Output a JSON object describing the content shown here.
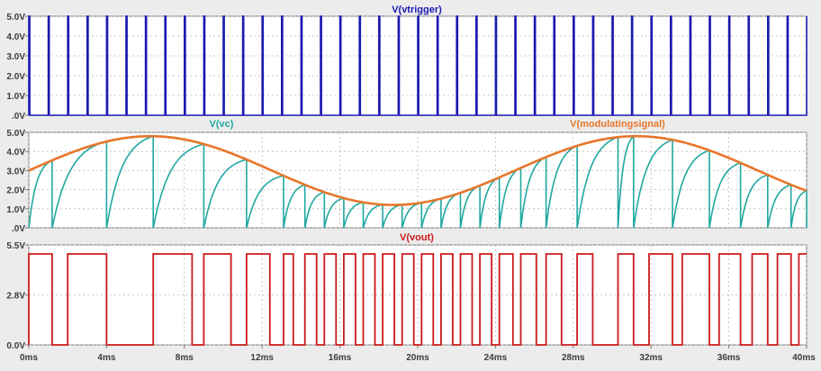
{
  "chart_data": [
    {
      "type": "line",
      "title": "V(vtrigger)",
      "title_color": "#1a1ab0",
      "yticks": [
        "5.0V",
        "4.0V",
        "3.0V",
        "2.0V",
        "1.0V",
        ".0V"
      ],
      "ylim": [
        0,
        5
      ],
      "xlim": [
        0,
        40
      ],
      "x_unit": "ms",
      "grid": true,
      "series": [
        {
          "name": "V(vtrigger)",
          "color": "#1a1ab0",
          "waveform": "pulse",
          "low": 0,
          "high": 5,
          "period_ms": 1.0,
          "pulse_width_ms": 0.05
        }
      ]
    },
    {
      "type": "line",
      "yticks": [
        "5.0V",
        "4.0V",
        "3.0V",
        "2.0V",
        "1.0V",
        ".0V"
      ],
      "ylim": [
        0,
        5
      ],
      "xlim": [
        0,
        40
      ],
      "grid": true,
      "series": [
        {
          "name": "V(vc)",
          "color": "#1fa8a0",
          "waveform": "sawtooth-reset",
          "note_reset_times_ms": [
            1.2,
            4.0,
            6.4,
            9.0,
            11.2,
            13.1,
            14.2,
            15.2,
            16.2,
            17.2,
            18.2,
            19.2,
            20.2,
            21.2,
            22.2,
            23.2,
            24.2,
            25.3,
            26.6,
            28.2,
            30.3,
            31.1,
            33.1,
            35.0,
            36.6,
            38.0,
            39.2,
            40.0
          ]
        },
        {
          "name": "V(modulatingsignal)",
          "color": "#e8762a",
          "waveform": "sine",
          "offset": 3.0,
          "amplitude": 1.8,
          "frequency_hz": 40,
          "phase_peak_ms": 6.25
        }
      ]
    },
    {
      "type": "line",
      "title": "V(vout)",
      "title_color": "#cc1a1a",
      "yticks": [
        "5.5V",
        "2.8V",
        "0.0V"
      ],
      "ylim": [
        0,
        5.5
      ],
      "xlim": [
        0,
        40
      ],
      "grid": true,
      "series": [
        {
          "name": "V(vout)",
          "color": "#cc1a1a",
          "waveform": "pwm",
          "low": 0,
          "high": 5.5,
          "edges_ms": [
            0,
            1.2,
            2.0,
            4.0,
            6.4,
            8.4,
            9.0,
            10.4,
            11.2,
            12.4,
            13.1,
            13.6,
            14.2,
            14.8,
            15.2,
            15.8,
            16.2,
            16.8,
            17.2,
            17.8,
            18.2,
            18.8,
            19.2,
            19.8,
            20.2,
            20.8,
            21.2,
            21.8,
            22.2,
            22.8,
            23.2,
            23.8,
            24.2,
            24.9,
            25.3,
            26.1,
            26.6,
            27.4,
            28.2,
            29.0,
            30.3,
            31.1,
            31.9,
            33.1,
            33.6,
            35.0,
            35.5,
            36.6,
            37.2,
            38.0,
            38.5,
            39.2,
            39.6,
            40.0
          ]
        }
      ]
    }
  ],
  "x_axis": {
    "ticks": [
      "0ms",
      "4ms",
      "8ms",
      "12ms",
      "16ms",
      "20ms",
      "24ms",
      "28ms",
      "32ms",
      "36ms",
      "40ms"
    ]
  },
  "titles": {
    "vc": "V(vc)",
    "modulating": "V(modulatingsignal)",
    "vtrigger": "V(vtrigger)",
    "vout": "V(vout)"
  },
  "colors": {
    "panel_bg": "#ffffff",
    "grid": "#b8b8b8",
    "axis": "#7a7a7a",
    "tick_text": "#3c3c3c"
  }
}
